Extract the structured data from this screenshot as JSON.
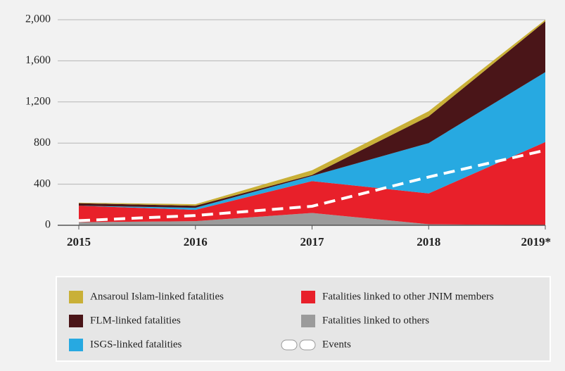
{
  "chart_data": {
    "type": "stacked-area",
    "categories": [
      "2015",
      "2016",
      "2017",
      "2018",
      "2019*"
    ],
    "series": [
      {
        "name": "Fatalities linked to others",
        "color": "#9b9b9b",
        "values": [
          30,
          40,
          120,
          10,
          0
        ]
      },
      {
        "name": "Fatalities linked to other JNIM members",
        "color": "#e8202a",
        "values": [
          160,
          110,
          310,
          300,
          810
        ]
      },
      {
        "name": "ISGS-linked fatalities",
        "color": "#27a9e1",
        "values": [
          0,
          20,
          50,
          490,
          680
        ]
      },
      {
        "name": "FLM-linked fatalities",
        "color": "#4a1518",
        "values": [
          25,
          20,
          10,
          260,
          495
        ]
      },
      {
        "name": "Ansaroul Islam-linked fatalities",
        "color": "#c9b037",
        "values": [
          5,
          15,
          45,
          50,
          15
        ]
      }
    ],
    "line": {
      "name": "Events",
      "color": "#ffffff",
      "values": [
        45,
        95,
        185,
        470,
        730
      ]
    },
    "ylim": [
      0,
      2000
    ],
    "yticks": [
      0,
      400,
      800,
      {
        "value": 1200,
        "label": "1,200"
      },
      {
        "value": 1600,
        "label": "1,600"
      },
      {
        "value": 2000,
        "label": "2,000"
      }
    ],
    "grid": true
  }
}
